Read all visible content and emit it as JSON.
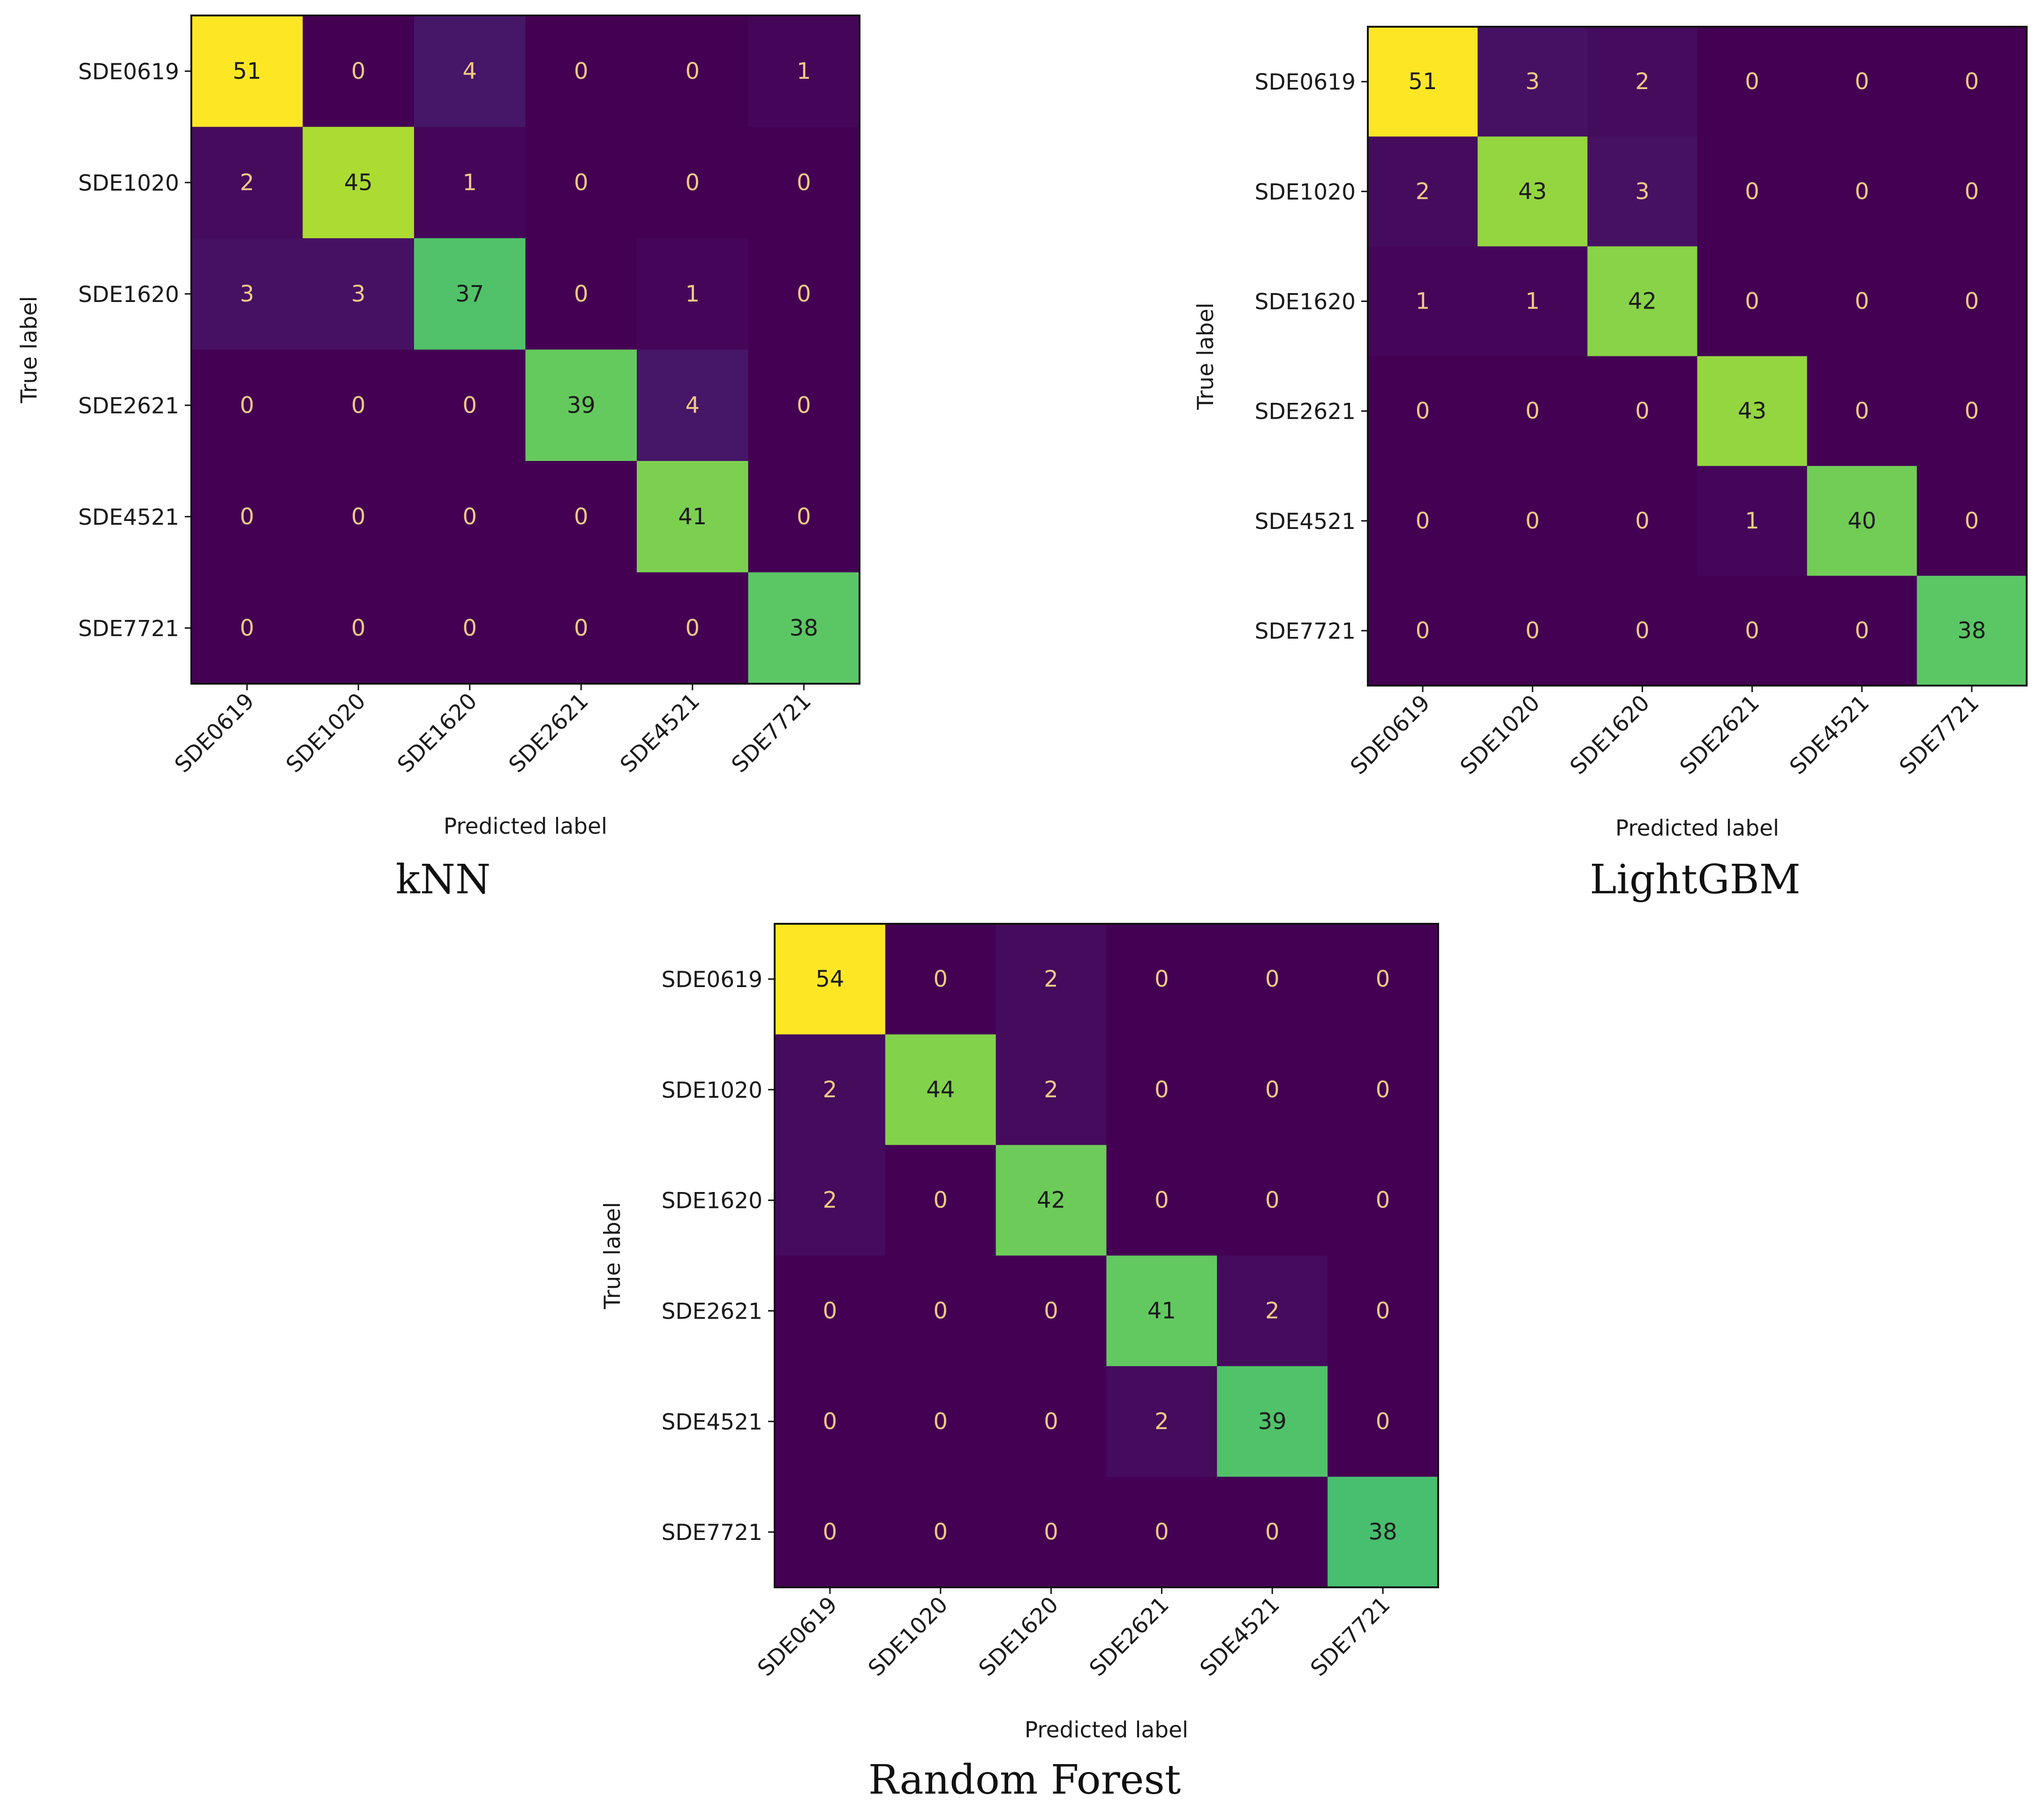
{
  "chart_data": [
    {
      "type": "heatmap",
      "title": "kNN",
      "xlabel": "Predicted label",
      "ylabel": "True label",
      "categories": [
        "SDE0619",
        "SDE1020",
        "SDE1620",
        "SDE2621",
        "SDE4521",
        "SDE7721"
      ],
      "values": [
        [
          51,
          0,
          4,
          0,
          0,
          1
        ],
        [
          2,
          45,
          1,
          0,
          0,
          0
        ],
        [
          3,
          3,
          37,
          0,
          1,
          0
        ],
        [
          0,
          0,
          0,
          39,
          4,
          0
        ],
        [
          0,
          0,
          0,
          0,
          41,
          0
        ],
        [
          0,
          0,
          0,
          0,
          0,
          38
        ]
      ],
      "vmax": 51,
      "colormap": "viridis"
    },
    {
      "type": "heatmap",
      "title": "LightGBM",
      "xlabel": "Predicted label",
      "ylabel": "True label",
      "categories": [
        "SDE0619",
        "SDE1020",
        "SDE1620",
        "SDE2621",
        "SDE4521",
        "SDE7721"
      ],
      "values": [
        [
          51,
          3,
          2,
          0,
          0,
          0
        ],
        [
          2,
          43,
          3,
          0,
          0,
          0
        ],
        [
          1,
          1,
          42,
          0,
          0,
          0
        ],
        [
          0,
          0,
          0,
          43,
          0,
          0
        ],
        [
          0,
          0,
          0,
          1,
          40,
          0
        ],
        [
          0,
          0,
          0,
          0,
          0,
          38
        ]
      ],
      "vmax": 51,
      "colormap": "viridis"
    },
    {
      "type": "heatmap",
      "title": "Random Forest",
      "xlabel": "Predicted label",
      "ylabel": "True label",
      "categories": [
        "SDE0619",
        "SDE1020",
        "SDE1620",
        "SDE2621",
        "SDE4521",
        "SDE7721"
      ],
      "values": [
        [
          54,
          0,
          2,
          0,
          0,
          0
        ],
        [
          2,
          44,
          2,
          0,
          0,
          0
        ],
        [
          2,
          0,
          42,
          0,
          0,
          0
        ],
        [
          0,
          0,
          0,
          41,
          2,
          0
        ],
        [
          0,
          0,
          0,
          2,
          39,
          0
        ],
        [
          0,
          0,
          0,
          0,
          0,
          38
        ]
      ],
      "vmax": 54,
      "colormap": "viridis"
    }
  ]
}
